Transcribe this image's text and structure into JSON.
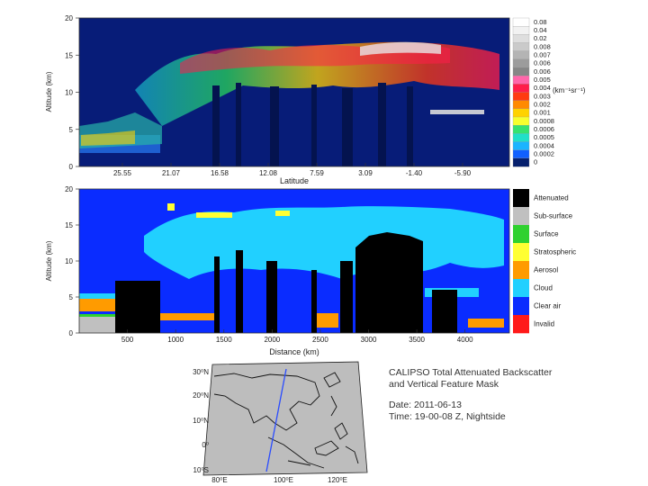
{
  "chart_data": [
    {
      "type": "heatmap",
      "title": "",
      "xlabel": "Latitude",
      "ylabel": "Altitude (km)",
      "ylim": [
        0,
        20
      ],
      "x_ticks": [
        "25.55",
        "21.07",
        "16.58",
        "12.08",
        "7.59",
        "3.09",
        "-1.40",
        "-5.90"
      ],
      "y_ticks": [
        "0",
        "5",
        "10",
        "15",
        "20"
      ],
      "colorbar": {
        "unit": "(km⁻¹sr⁻¹)",
        "levels": [
          {
            "label": "0.08",
            "color": "#ffffff"
          },
          {
            "label": "0.04",
            "color": "#f2f2f2"
          },
          {
            "label": "0.02",
            "color": "#dedede"
          },
          {
            "label": "0.008",
            "color": "#cacaca"
          },
          {
            "label": "0.007",
            "color": "#b4b4b4"
          },
          {
            "label": "0.006",
            "color": "#9c9c9c"
          },
          {
            "label": "0.006",
            "color": "#868686"
          },
          {
            "label": "0.005",
            "color": "#ff66aa"
          },
          {
            "label": "0.004",
            "color": "#ff1d4a"
          },
          {
            "label": "0.003",
            "color": "#ff3a10"
          },
          {
            "label": "0.002",
            "color": "#ff8a00"
          },
          {
            "label": "0.001",
            "color": "#ffd200"
          },
          {
            "label": "0.0008",
            "color": "#f7ff2e"
          },
          {
            "label": "0.0006",
            "color": "#36e36e"
          },
          {
            "label": "0.0005",
            "color": "#20e0c8"
          },
          {
            "label": "0.0004",
            "color": "#1bb4ff"
          },
          {
            "label": "0.0002",
            "color": "#1160ff"
          },
          {
            "label": "0",
            "color": "#06206e"
          }
        ]
      }
    },
    {
      "type": "heatmap",
      "title": "",
      "xlabel": "Distance (km)",
      "ylabel": "Altitude (km)",
      "ylim": [
        0,
        20
      ],
      "x_ticks": [
        "500",
        "1000",
        "1500",
        "2000",
        "2500",
        "3000",
        "3500",
        "4000"
      ],
      "y_ticks": [
        "0",
        "5",
        "10",
        "15",
        "20"
      ],
      "legend": [
        {
          "label": "Attenuated",
          "color": "#000000"
        },
        {
          "label": "Sub-surface",
          "color": "#c0c0c0"
        },
        {
          "label": "Surface",
          "color": "#2fd12f"
        },
        {
          "label": "Stratospheric",
          "color": "#ffff33"
        },
        {
          "label": "Aerosol",
          "color": "#ff9b00"
        },
        {
          "label": "Cloud",
          "color": "#21d0ff"
        },
        {
          "label": "Clear air",
          "color": "#0a2cff"
        },
        {
          "label": "Invalid",
          "color": "#ff1a1a"
        }
      ]
    }
  ],
  "map": {
    "lat_labels": [
      "30⁰N",
      "20⁰N",
      "10⁰N",
      "0⁰",
      "10⁰S"
    ],
    "lon_labels": [
      "80⁰E",
      "100⁰E",
      "120⁰E"
    ]
  },
  "info": {
    "title_line1": "CALIPSO Total Attenuated Backscatter",
    "title_line2": "and Vertical Feature Mask",
    "date": "Date: 2011-06-13",
    "time": "Time: 19-00-08 Z, Nightside"
  }
}
